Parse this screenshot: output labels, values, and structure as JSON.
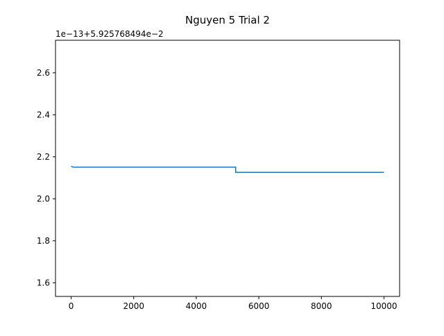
{
  "chart_data": {
    "type": "line",
    "title": "Nguyen 5 Trial 2",
    "xlabel": "",
    "ylabel": "",
    "offset_label": "1e−13+5.925768494e−2",
    "xlim": [
      -500,
      10500
    ],
    "ylim": [
      1.535,
      2.755
    ],
    "xticks": [
      0,
      2000,
      4000,
      6000,
      8000,
      10000
    ],
    "xtick_labels": [
      "0",
      "2000",
      "4000",
      "6000",
      "8000",
      "10000"
    ],
    "yticks": [
      1.6,
      1.8,
      2.0,
      2.2,
      2.4,
      2.6
    ],
    "ytick_labels": [
      "1.6",
      "1.8",
      "2.0",
      "2.2",
      "2.4",
      "2.6"
    ],
    "grid": false,
    "series": [
      {
        "color": "#1f77b4",
        "x": [
          0,
          60,
          5260,
          5260,
          10000
        ],
        "y": [
          2.155,
          2.151,
          2.151,
          2.126,
          2.126
        ]
      }
    ]
  }
}
